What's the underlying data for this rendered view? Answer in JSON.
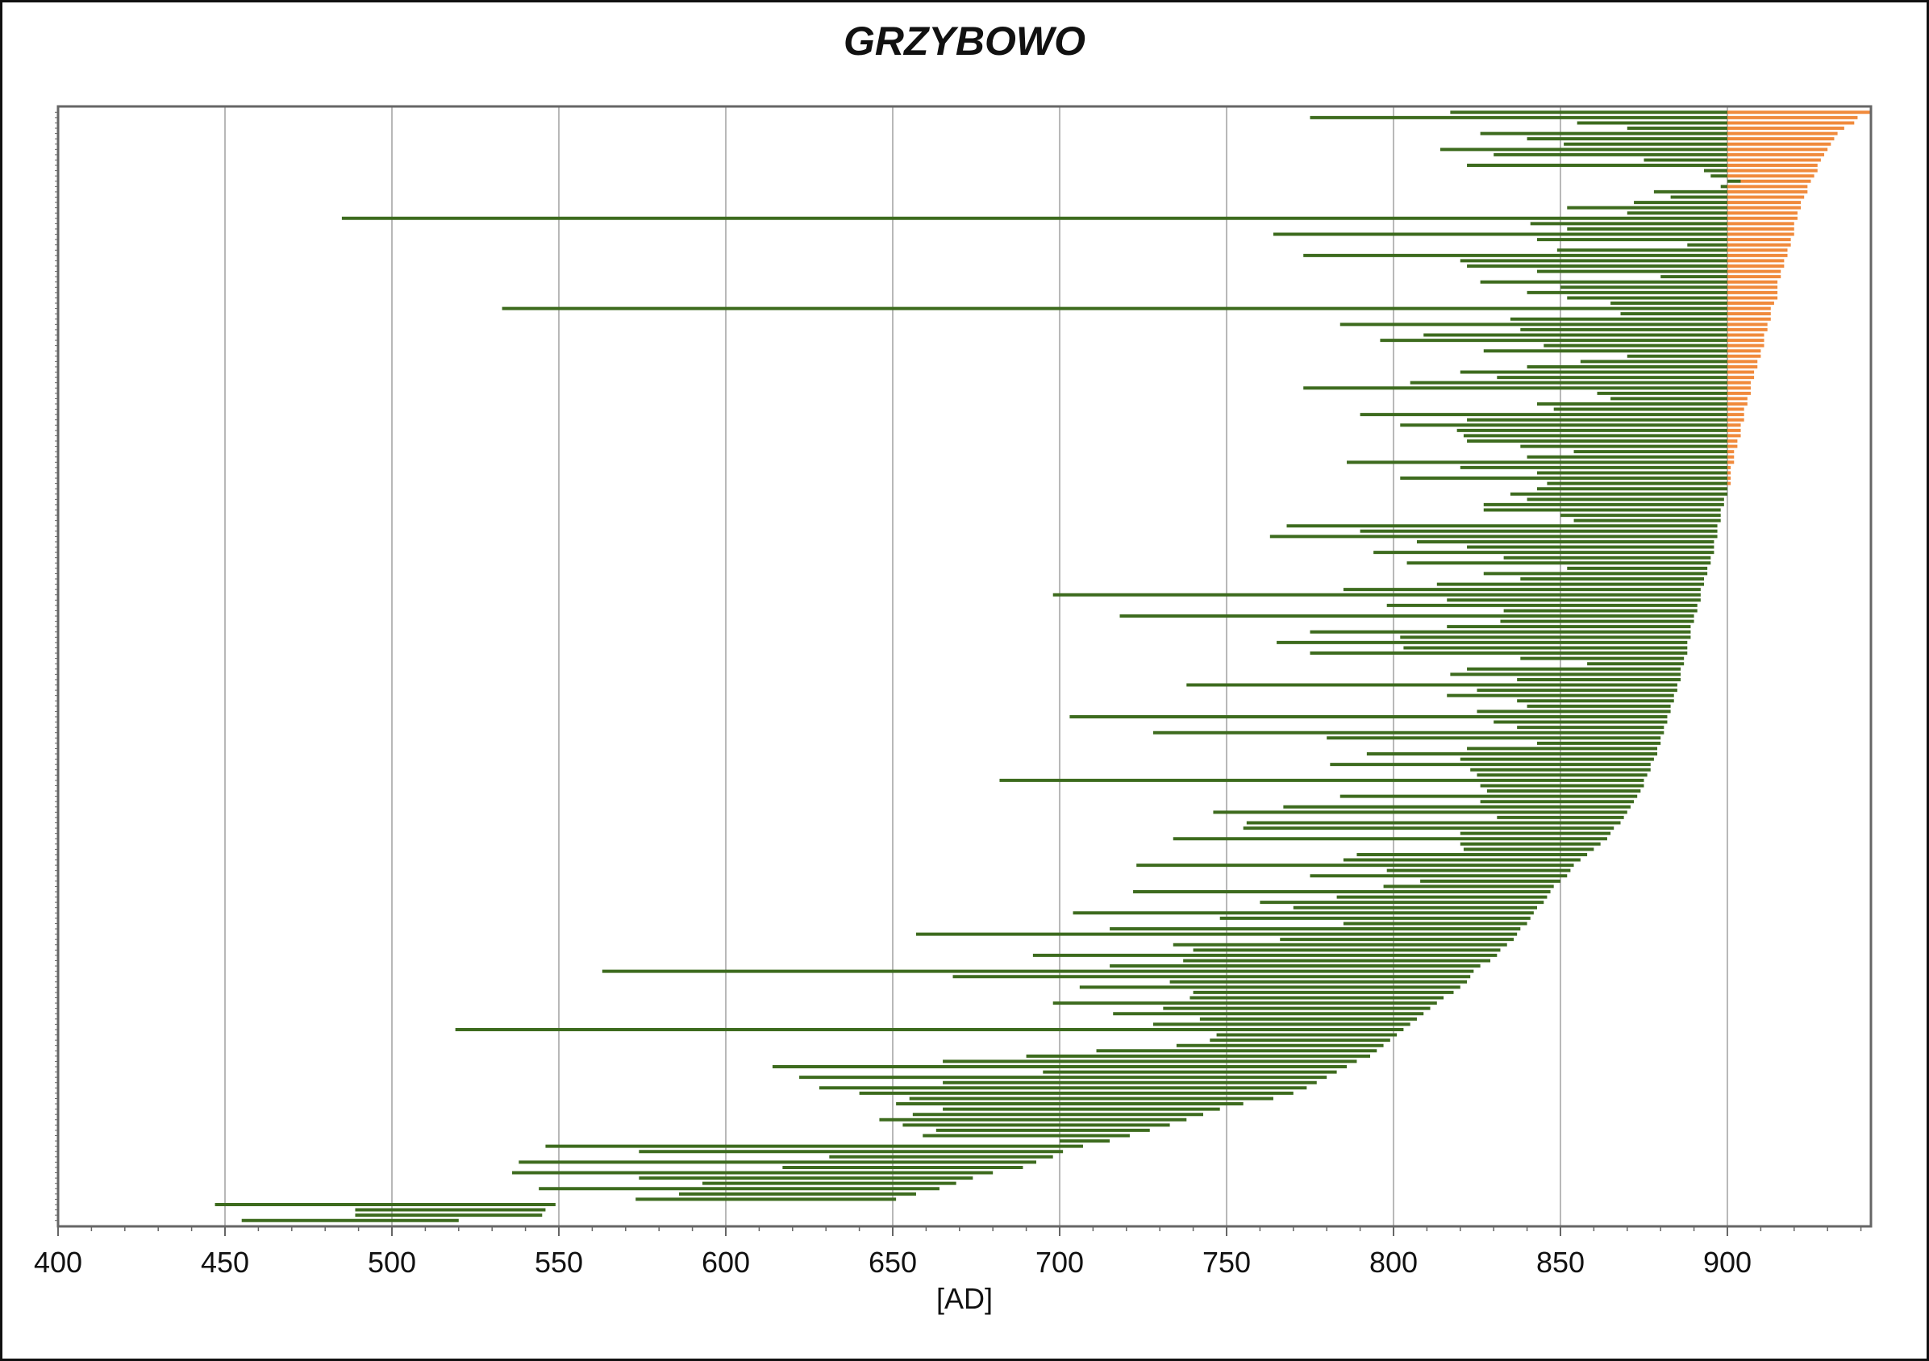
{
  "chart_data": {
    "type": "range",
    "title": "GRZYBOWO",
    "xlabel": "[AD]",
    "xlim": [
      400,
      943
    ],
    "xticks": [
      400,
      450,
      500,
      550,
      600,
      650,
      700,
      750,
      800,
      850,
      900
    ],
    "grid": true,
    "colors": {
      "range": "#3d6b1e",
      "after_900": "#f08a3c",
      "grid": "#b8b8b8",
      "axis": "#666666"
    },
    "note": "Each item is one horizontal range bar; the portion beyond 900 is shown in orange for the top rows.",
    "series": [
      {
        "name": "",
        "ranges": [
          [
            817,
            943
          ],
          [
            775,
            939
          ],
          [
            855,
            938
          ],
          [
            870,
            935
          ],
          [
            826,
            933
          ],
          [
            840,
            932
          ],
          [
            851,
            931
          ],
          [
            814,
            930
          ],
          [
            830,
            929
          ],
          [
            875,
            928
          ],
          [
            822,
            927
          ],
          [
            893,
            927
          ],
          [
            895,
            926
          ],
          [
            904,
            925
          ],
          [
            898,
            924
          ],
          [
            878,
            924
          ],
          [
            883,
            923
          ],
          [
            872,
            922
          ],
          [
            852,
            922
          ],
          [
            870,
            921
          ],
          [
            485,
            921
          ],
          [
            841,
            920
          ],
          [
            852,
            920
          ],
          [
            764,
            920
          ],
          [
            843,
            919
          ],
          [
            888,
            919
          ],
          [
            849,
            918
          ],
          [
            773,
            918
          ],
          [
            820,
            917
          ],
          [
            822,
            917
          ],
          [
            843,
            916
          ],
          [
            880,
            916
          ],
          [
            826,
            915
          ],
          [
            850,
            915
          ],
          [
            840,
            915
          ],
          [
            852,
            915
          ],
          [
            865,
            914
          ],
          [
            533,
            913
          ],
          [
            868,
            913
          ],
          [
            835,
            913
          ],
          [
            784,
            912
          ],
          [
            838,
            912
          ],
          [
            809,
            911
          ],
          [
            796,
            911
          ],
          [
            845,
            911
          ],
          [
            827,
            910
          ],
          [
            870,
            910
          ],
          [
            856,
            909
          ],
          [
            840,
            909
          ],
          [
            820,
            908
          ],
          [
            831,
            908
          ],
          [
            805,
            907
          ],
          [
            773,
            907
          ],
          [
            861,
            907
          ],
          [
            865,
            906
          ],
          [
            843,
            906
          ],
          [
            848,
            905
          ],
          [
            790,
            905
          ],
          [
            822,
            905
          ],
          [
            802,
            904
          ],
          [
            819,
            904
          ],
          [
            821,
            904
          ],
          [
            822,
            903
          ],
          [
            838,
            903
          ],
          [
            854,
            902
          ],
          [
            840,
            902
          ],
          [
            786,
            902
          ],
          [
            820,
            901
          ],
          [
            843,
            901
          ],
          [
            802,
            901
          ],
          [
            846,
            901
          ],
          [
            843,
            900
          ],
          [
            835,
            900
          ],
          [
            840,
            899
          ],
          [
            827,
            899
          ],
          [
            827,
            898
          ],
          [
            850,
            898
          ],
          [
            854,
            898
          ],
          [
            768,
            897
          ],
          [
            790,
            897
          ],
          [
            763,
            897
          ],
          [
            807,
            896
          ],
          [
            822,
            896
          ],
          [
            794,
            896
          ],
          [
            833,
            895
          ],
          [
            804,
            895
          ],
          [
            852,
            894
          ],
          [
            827,
            894
          ],
          [
            838,
            893
          ],
          [
            813,
            893
          ],
          [
            785,
            892
          ],
          [
            698,
            892
          ],
          [
            816,
            892
          ],
          [
            798,
            891
          ],
          [
            833,
            891
          ],
          [
            718,
            890
          ],
          [
            832,
            890
          ],
          [
            816,
            889
          ],
          [
            775,
            889
          ],
          [
            802,
            889
          ],
          [
            765,
            888
          ],
          [
            803,
            888
          ],
          [
            775,
            888
          ],
          [
            838,
            887
          ],
          [
            858,
            887
          ],
          [
            822,
            886
          ],
          [
            817,
            886
          ],
          [
            837,
            886
          ],
          [
            738,
            885
          ],
          [
            825,
            885
          ],
          [
            816,
            884
          ],
          [
            837,
            884
          ],
          [
            840,
            883
          ],
          [
            825,
            883
          ],
          [
            703,
            882
          ],
          [
            830,
            882
          ],
          [
            837,
            881
          ],
          [
            728,
            881
          ],
          [
            780,
            880
          ],
          [
            843,
            880
          ],
          [
            822,
            879
          ],
          [
            792,
            879
          ],
          [
            820,
            878
          ],
          [
            781,
            877
          ],
          [
            823,
            877
          ],
          [
            825,
            876
          ],
          [
            682,
            875
          ],
          [
            826,
            875
          ],
          [
            828,
            874
          ],
          [
            784,
            873
          ],
          [
            826,
            872
          ],
          [
            767,
            871
          ],
          [
            746,
            870
          ],
          [
            831,
            869
          ],
          [
            756,
            868
          ],
          [
            755,
            866
          ],
          [
            820,
            865
          ],
          [
            734,
            864
          ],
          [
            820,
            862
          ],
          [
            821,
            860
          ],
          [
            789,
            858
          ],
          [
            785,
            856
          ],
          [
            723,
            854
          ],
          [
            798,
            853
          ],
          [
            775,
            852
          ],
          [
            808,
            850
          ],
          [
            797,
            848
          ],
          [
            722,
            847
          ],
          [
            783,
            846
          ],
          [
            760,
            845
          ],
          [
            770,
            843
          ],
          [
            704,
            842
          ],
          [
            748,
            841
          ],
          [
            785,
            840
          ],
          [
            715,
            838
          ],
          [
            657,
            837
          ],
          [
            766,
            836
          ],
          [
            734,
            834
          ],
          [
            740,
            832
          ],
          [
            692,
            831
          ],
          [
            737,
            829
          ],
          [
            715,
            826
          ],
          [
            563,
            824
          ],
          [
            668,
            823
          ],
          [
            733,
            822
          ],
          [
            706,
            820
          ],
          [
            740,
            818
          ],
          [
            739,
            815
          ],
          [
            698,
            813
          ],
          [
            731,
            811
          ],
          [
            716,
            809
          ],
          [
            742,
            807
          ],
          [
            728,
            805
          ],
          [
            519,
            803
          ],
          [
            747,
            801
          ],
          [
            745,
            799
          ],
          [
            735,
            797
          ],
          [
            711,
            795
          ],
          [
            690,
            793
          ],
          [
            665,
            789
          ],
          [
            614,
            786
          ],
          [
            695,
            783
          ],
          [
            622,
            780
          ],
          [
            665,
            777
          ],
          [
            628,
            774
          ],
          [
            640,
            770
          ],
          [
            655,
            764
          ],
          [
            651,
            755
          ],
          [
            665,
            748
          ],
          [
            656,
            743
          ],
          [
            646,
            738
          ],
          [
            653,
            733
          ],
          [
            663,
            727
          ],
          [
            659,
            721
          ],
          [
            700,
            715
          ],
          [
            546,
            707
          ],
          [
            574,
            701
          ],
          [
            631,
            698
          ],
          [
            538,
            693
          ],
          [
            617,
            689
          ],
          [
            536,
            680
          ],
          [
            574,
            674
          ],
          [
            593,
            669
          ],
          [
            544,
            664
          ],
          [
            586,
            657
          ],
          [
            573,
            651
          ],
          [
            447,
            549
          ],
          [
            489,
            546
          ],
          [
            489,
            545
          ],
          [
            455,
            520
          ]
        ]
      }
    ]
  }
}
